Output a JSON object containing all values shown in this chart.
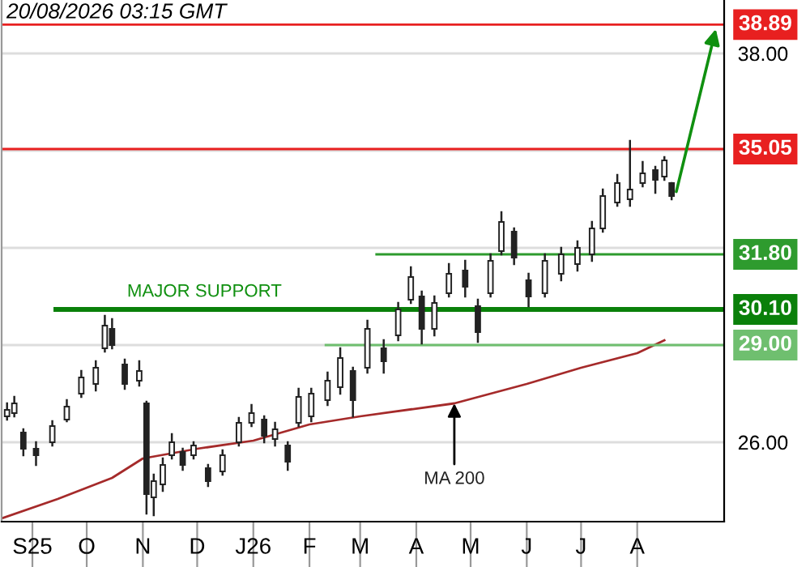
{
  "chart_data": {
    "type": "candlestick",
    "title": "20/08/2026 03:15 GMT",
    "x": [
      "2025-08-18",
      "2025-08-22",
      "2025-08-27",
      "2025-09-03",
      "2025-09-12",
      "2025-09-20",
      "2025-09-28",
      "2025-10-06",
      "2025-10-11",
      "2025-10-15",
      "2025-10-22",
      "2025-10-30",
      "2025-11-03",
      "2025-11-07",
      "2025-11-12",
      "2025-11-17",
      "2025-11-23",
      "2025-11-29",
      "2025-12-07",
      "2025-12-15",
      "2025-12-24",
      "2025-12-31",
      "2026-01-07",
      "2026-01-13",
      "2026-01-20",
      "2026-01-26",
      "2026-02-02",
      "2026-02-11",
      "2026-02-18",
      "2026-02-25",
      "2026-03-05",
      "2026-03-14",
      "2026-03-22",
      "2026-03-29",
      "2026-04-04",
      "2026-04-11",
      "2026-04-19",
      "2026-04-28",
      "2026-05-05",
      "2026-05-12",
      "2026-05-18",
      "2026-05-25",
      "2026-06-02",
      "2026-06-11",
      "2026-06-20",
      "2026-06-29",
      "2026-07-07",
      "2026-07-13",
      "2026-07-21",
      "2026-07-28",
      "2026-08-04",
      "2026-08-11",
      "2026-08-16",
      "2026-08-20"
    ],
    "ohlc": [
      [
        26.8,
        27.2,
        26.7,
        27.0
      ],
      [
        26.9,
        27.4,
        26.8,
        27.2
      ],
      [
        26.3,
        26.4,
        25.6,
        25.8
      ],
      [
        25.8,
        26.0,
        25.3,
        25.6
      ],
      [
        26.0,
        26.65,
        25.9,
        26.5
      ],
      [
        26.7,
        27.3,
        26.65,
        27.1
      ],
      [
        27.5,
        28.2,
        27.4,
        28.0
      ],
      [
        27.8,
        28.5,
        27.6,
        28.3
      ],
      [
        28.9,
        29.9,
        28.8,
        29.6
      ],
      [
        29.5,
        29.8,
        28.9,
        29.0
      ],
      [
        28.4,
        28.55,
        27.65,
        27.8
      ],
      [
        27.9,
        28.5,
        27.75,
        28.2
      ],
      [
        27.2,
        27.25,
        23.8,
        24.4
      ],
      [
        24.3,
        25.0,
        23.75,
        24.8
      ],
      [
        24.7,
        25.5,
        24.5,
        25.3
      ],
      [
        25.6,
        26.25,
        25.5,
        26.0
      ],
      [
        25.7,
        25.8,
        25.15,
        25.3
      ],
      [
        25.6,
        26.0,
        25.5,
        25.9
      ],
      [
        25.2,
        25.3,
        24.65,
        24.8
      ],
      [
        25.1,
        25.75,
        25.0,
        25.6
      ],
      [
        26.0,
        26.75,
        25.9,
        26.6
      ],
      [
        26.6,
        27.15,
        26.5,
        26.9
      ],
      [
        26.7,
        26.8,
        26.0,
        26.2
      ],
      [
        26.1,
        26.6,
        25.9,
        26.4
      ],
      [
        25.9,
        26.0,
        25.15,
        25.4
      ],
      [
        26.6,
        27.65,
        26.5,
        27.4
      ],
      [
        26.8,
        27.65,
        26.65,
        27.5
      ],
      [
        27.3,
        28.15,
        27.15,
        27.9
      ],
      [
        27.7,
        28.9,
        27.5,
        28.6
      ],
      [
        28.2,
        28.3,
        26.8,
        27.3
      ],
      [
        28.3,
        29.75,
        28.15,
        29.5
      ],
      [
        28.9,
        29.15,
        28.15,
        28.5
      ],
      [
        29.3,
        30.3,
        29.15,
        30.1
      ],
      [
        30.4,
        31.4,
        30.3,
        31.1
      ],
      [
        30.5,
        30.65,
        29.05,
        29.5
      ],
      [
        29.5,
        30.5,
        29.3,
        30.3
      ],
      [
        30.6,
        31.5,
        30.5,
        31.2
      ],
      [
        31.3,
        31.6,
        30.5,
        30.8
      ],
      [
        30.2,
        30.4,
        29.1,
        29.4
      ],
      [
        30.6,
        31.8,
        30.5,
        31.6
      ],
      [
        31.9,
        33.1,
        31.8,
        32.8
      ],
      [
        32.5,
        32.6,
        31.5,
        31.7
      ],
      [
        31.0,
        31.2,
        30.2,
        30.5
      ],
      [
        30.6,
        31.8,
        30.5,
        31.6
      ],
      [
        31.2,
        32.0,
        31.0,
        31.8
      ],
      [
        31.5,
        32.2,
        31.3,
        32.0
      ],
      [
        31.8,
        32.8,
        31.6,
        32.6
      ],
      [
        32.6,
        33.8,
        32.5,
        33.6
      ],
      [
        33.4,
        34.25,
        33.3,
        34.0
      ],
      [
        33.5,
        35.3,
        33.3,
        33.8
      ],
      [
        34.0,
        34.65,
        33.9,
        34.3
      ],
      [
        34.4,
        34.5,
        33.7,
        34.1
      ],
      [
        34.2,
        34.8,
        34.1,
        34.7
      ],
      [
        34.0,
        34.0,
        33.5,
        33.6
      ]
    ],
    "color": "#222222",
    "series": [
      {
        "type": "line",
        "color": "#a52a2a",
        "x": [
          "2025-08-15",
          "2025-09-15",
          "2025-10-15",
          "2025-11-01",
          "2025-12-01",
          "2026-01-01",
          "2026-02-01",
          "2026-03-01",
          "2026-04-22",
          "2026-06-01",
          "2026-07-01",
          "2026-08-01",
          "2026-08-16"
        ],
        "values": [
          23.65,
          24.25,
          24.9,
          25.5,
          25.8,
          26.05,
          26.55,
          26.8,
          27.2,
          27.8,
          28.3,
          28.75,
          29.15
        ]
      },
      {
        "type": "line",
        "color": "#2e9b2e",
        "x": [
          "2026-03-10",
          "2026-09-18"
        ],
        "values": [
          31.8,
          31.8
        ],
        "value_labels": [
          null,
          "31.80"
        ]
      },
      {
        "type": "line",
        "color": "#0a800a",
        "x": [
          "2025-09-14",
          "2026-09-18"
        ],
        "values": [
          30.1,
          30.1
        ],
        "value_labels": [
          null,
          "30.10"
        ]
      },
      {
        "type": "line",
        "color": "#6fbf6f",
        "x": [
          "2026-02-10",
          "2026-09-18"
        ],
        "values": [
          29.0,
          29.0
        ],
        "value_labels": [
          null,
          "29.00"
        ]
      }
    ],
    "ref_lines": [
      {
        "axis": "y",
        "value": 38.89,
        "label": "38.89",
        "color": "#e82020"
      },
      {
        "axis": "y",
        "value": 35.05,
        "label": "35.05",
        "color": "#e82020"
      }
    ],
    "annotations": [
      {
        "text": "MAJOR SUPPORT",
        "x": "2025-12-05",
        "y": 30.1
      },
      {
        "text": "MA 200",
        "x": "2026-04-22",
        "y": 27.2
      }
    ],
    "xlim": [
      "2025-08-15",
      "2026-09-18"
    ],
    "xticks": [
      {
        "value": "2025-09-01",
        "label": "S25"
      },
      {
        "value": "2025-10-01",
        "label": "O"
      },
      {
        "value": "2025-11-01",
        "label": "N"
      },
      {
        "value": "2025-12-01",
        "label": "D"
      },
      {
        "value": "2026-01-01",
        "label": "J26"
      },
      {
        "value": "2026-02-01",
        "label": "F"
      },
      {
        "value": "2026-03-01",
        "label": "M"
      },
      {
        "value": "2026-04-01",
        "label": "A"
      },
      {
        "value": "2026-05-01",
        "label": "M"
      },
      {
        "value": "2026-06-01",
        "label": "J"
      },
      {
        "value": "2026-07-01",
        "label": "J"
      },
      {
        "value": "2026-08-01",
        "label": "A"
      }
    ],
    "ylim": [
      23.55,
      39.65
    ],
    "yticks": [
      {
        "value": 38,
        "label": "38.00"
      },
      {
        "value": 35,
        "label": null
      },
      {
        "value": 32,
        "label": null
      },
      {
        "value": 29,
        "label": null
      },
      {
        "value": 26,
        "label": "26.00"
      }
    ],
    "grid": "y"
  }
}
